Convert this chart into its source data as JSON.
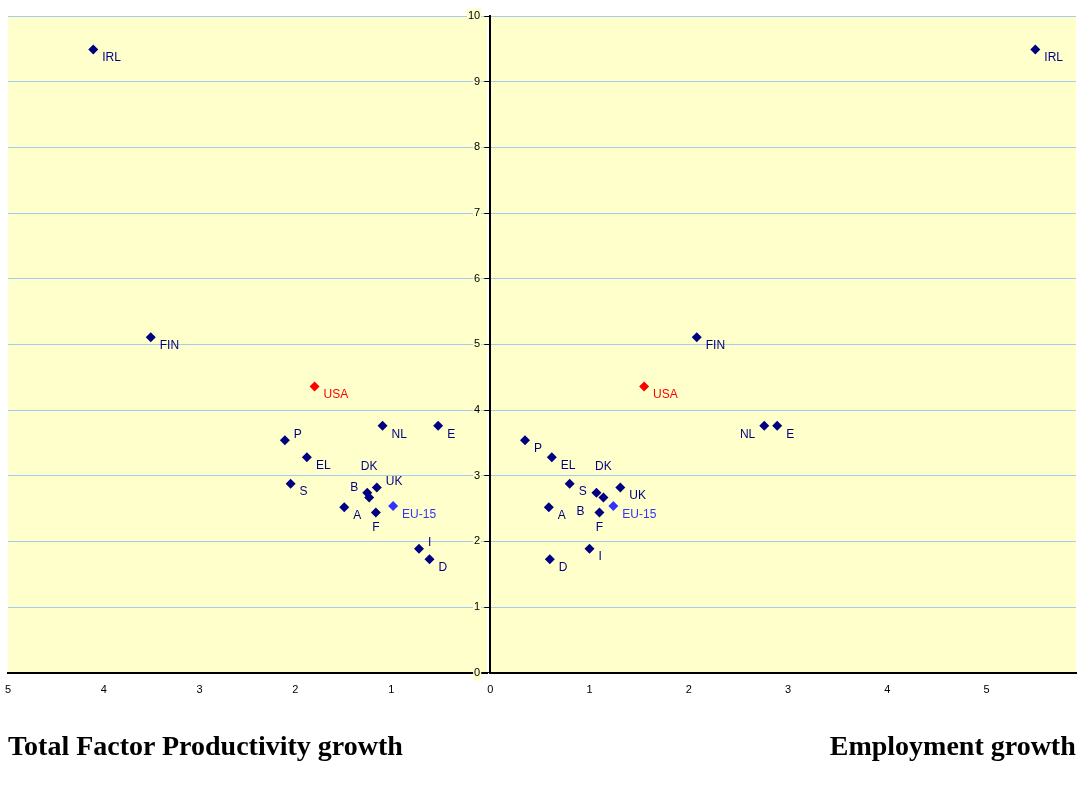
{
  "chart_data": [
    {
      "type": "scatter",
      "marker": "diamond",
      "grid": "y",
      "legend": false,
      "tick_labels": "x",
      "xlim": [
        5,
        0
      ],
      "ylim": [
        0,
        10
      ],
      "xticks": [
        5,
        4,
        3,
        2,
        1
      ],
      "yticks": [
        0,
        1,
        2,
        3,
        4,
        5,
        6,
        7,
        8,
        9,
        10
      ],
      "annotations": [
        "Total Factor Productivity growth"
      ],
      "series": [
        {
          "x": [
            4.11,
            3.51,
            1.8,
            2.11,
            1.88,
            2.05,
            1.25,
            1.23,
            1.15,
            1.49,
            1.16,
            0.98,
            1.09,
            0.51,
            0.71,
            0.6
          ],
          "values": [
            9.49,
            5.11,
            4.36,
            3.54,
            3.28,
            2.88,
            2.74,
            2.67,
            2.82,
            2.52,
            2.44,
            2.54,
            3.76,
            3.76,
            1.89,
            1.73
          ],
          "colors": [
            "#000080",
            "#000080",
            "#ff0000",
            "#000080",
            "#000080",
            "#000080",
            "#000080",
            "#000080",
            "#000080",
            "#000080",
            "#000080",
            "#3333ff",
            "#000080",
            "#000080",
            "#000080",
            "#000080"
          ],
          "value_labels": [
            "IRL",
            "FIN",
            "USA",
            "P",
            "EL",
            "S",
            "B",
            "DK",
            "UK",
            "A",
            "F",
            "EU-15",
            "NL",
            "E",
            "I",
            "D"
          ]
        }
      ]
    },
    {
      "type": "scatter",
      "marker": "diamond",
      "grid": "y",
      "legend": false,
      "xlim": [
        0,
        5.9
      ],
      "ylim": [
        0,
        10
      ],
      "xticks": [
        0,
        1,
        2,
        3,
        4,
        5
      ],
      "yticks": [
        0,
        1,
        2,
        3,
        4,
        5,
        6,
        7,
        8,
        9,
        10
      ],
      "annotations": [
        "Employment growth"
      ],
      "series": [
        {
          "x": [
            5.49,
            2.08,
            1.55,
            0.35,
            0.62,
            0.8,
            1.07,
            1.14,
            1.31,
            0.59,
            1.1,
            1.24,
            2.76,
            2.89,
            1.0,
            0.6
          ],
          "values": [
            9.49,
            5.11,
            4.36,
            3.54,
            3.28,
            2.88,
            2.74,
            2.67,
            2.82,
            2.52,
            2.44,
            2.54,
            3.76,
            3.76,
            1.89,
            1.73
          ],
          "colors": [
            "#000080",
            "#000080",
            "#ff0000",
            "#000080",
            "#000080",
            "#000080",
            "#000080",
            "#000080",
            "#000080",
            "#000080",
            "#000080",
            "#3333ff",
            "#000080",
            "#000080",
            "#000080",
            "#000080"
          ],
          "value_labels": [
            "IRL",
            "FIN",
            "USA",
            "P",
            "EL",
            "S",
            "B",
            "DK",
            "UK",
            "A",
            "F",
            "EU-15",
            "NL",
            "E",
            "I",
            "D"
          ]
        }
      ]
    }
  ]
}
